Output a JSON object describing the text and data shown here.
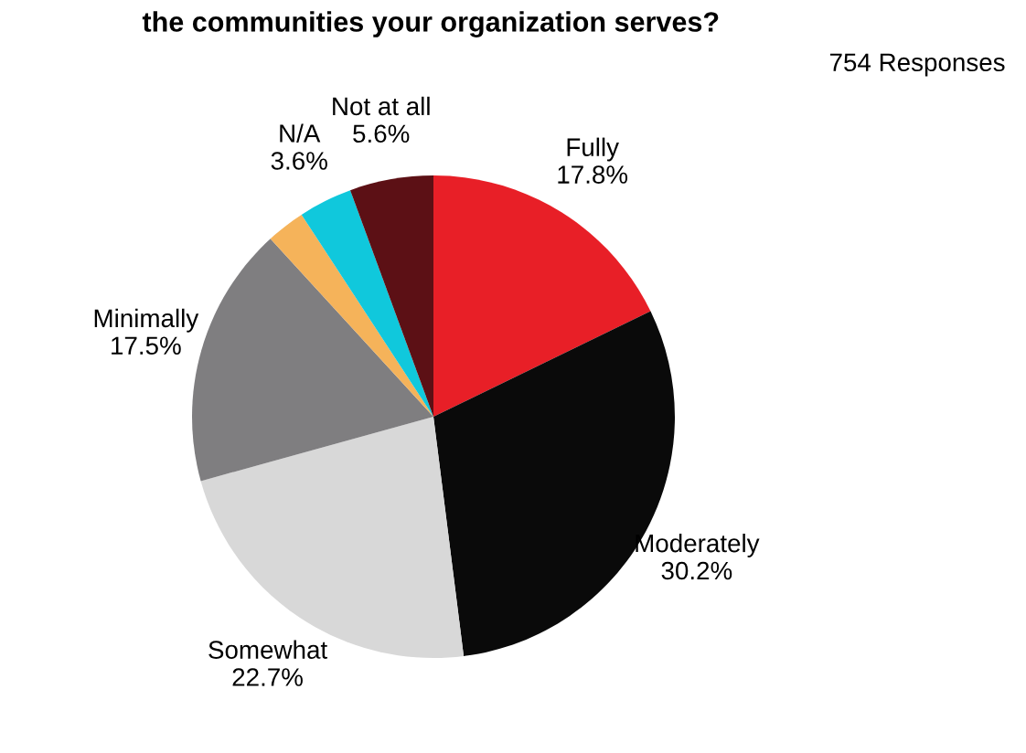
{
  "chart_data": {
    "type": "pie",
    "title": "the communities your organization serves?",
    "categories": [
      "Fully",
      "Moderately",
      "Somewhat",
      "Minimally",
      null,
      "N/A",
      "Not at all"
    ],
    "values": [
      17.8,
      30.2,
      22.7,
      17.5,
      2.6,
      3.6,
      5.6
    ],
    "value_labels": [
      "17.8%",
      "30.2%",
      "22.7%",
      "17.5%",
      null,
      "3.6%",
      "5.6%"
    ],
    "colors": [
      "#e81f27",
      "#0a0a0a",
      "#d8d8d8",
      "#7f7e80",
      "#f5b35a",
      "#10c8dc",
      "#5c1015"
    ],
    "annotations": [
      "754 Responses"
    ],
    "legend": false
  }
}
